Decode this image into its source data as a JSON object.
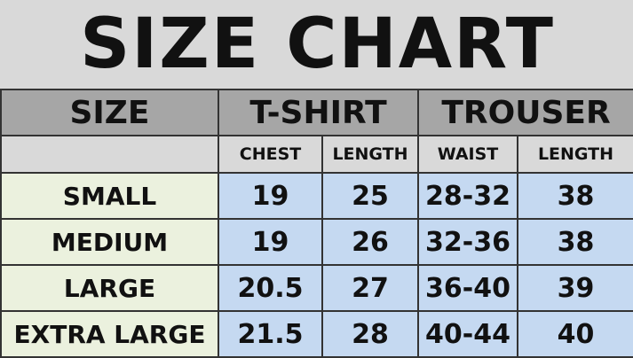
{
  "title": "SIZE CHART",
  "headers": {
    "size": "SIZE",
    "tshirt": "T-SHIRT",
    "trouser": "TROUSER"
  },
  "subheaders": [
    "CHEST",
    "LENGTH",
    "WAIST",
    "LENGTH"
  ],
  "rows": [
    {
      "size": "SMALL",
      "chest": "19",
      "tlength": "25",
      "waist": "28-32",
      "plength": "38"
    },
    {
      "size": "MEDIUM",
      "chest": "19",
      "tlength": "26",
      "waist": "32-36",
      "plength": "38"
    },
    {
      "size": "LARGE",
      "chest": "20.5",
      "tlength": "27",
      "waist": "36-40",
      "plength": "39"
    },
    {
      "size": "EXTRA LARGE",
      "chest": "21.5",
      "tlength": "28",
      "waist": "40-44",
      "plength": "40"
    }
  ],
  "colors": {
    "title_bg": "#d9d9d9",
    "header_bg": "#a6a6a6",
    "size_col_bg": "#ebf1de",
    "data_bg": "#c5d9f1"
  }
}
